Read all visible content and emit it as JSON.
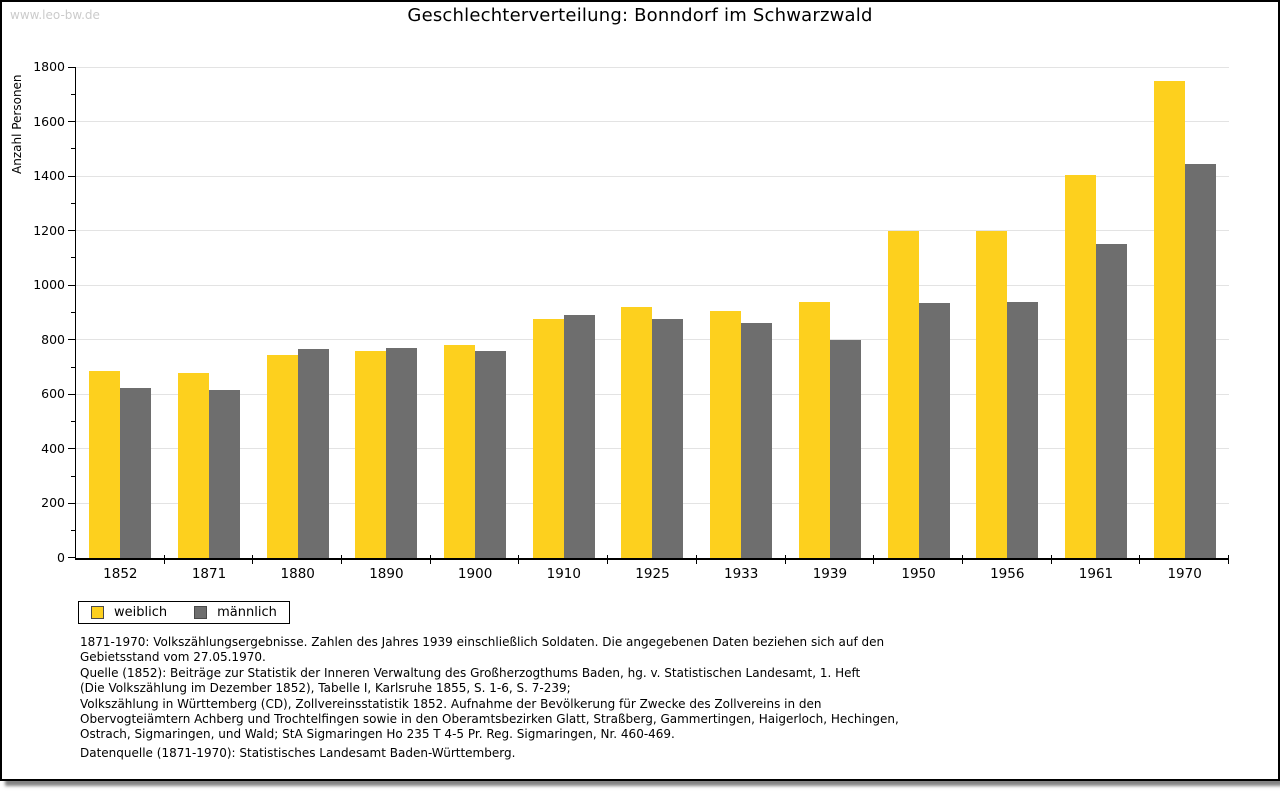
{
  "watermark": "www.leo-bw.de",
  "chart_data": {
    "type": "bar",
    "title": "Geschlechterverteilung: Bonndorf im Schwarzwald",
    "xlabel": "",
    "ylabel": "Anzahl Personen",
    "ylim": [
      0,
      1800
    ],
    "ytick_step": 200,
    "yminor_step": 100,
    "grid": "horizontal-major-gridlines",
    "legend_position": "bottom-left",
    "categories": [
      "1852",
      "1871",
      "1880",
      "1890",
      "1900",
      "1910",
      "1925",
      "1933",
      "1939",
      "1950",
      "1956",
      "1961",
      "1970"
    ],
    "series": [
      {
        "name": "weiblich",
        "color": "#FDD01E",
        "values": [
          685,
          680,
          745,
          760,
          780,
          875,
          920,
          905,
          940,
          1200,
          1200,
          1405,
          1750
        ]
      },
      {
        "name": "männlich",
        "color": "#6E6E6E",
        "values": [
          625,
          615,
          765,
          770,
          760,
          890,
          875,
          860,
          800,
          935,
          940,
          1150,
          1445
        ]
      }
    ]
  },
  "footnotes": {
    "lines": [
      "1871-1970: Volkszählungsergebnisse. Zahlen des Jahres 1939 einschließlich Soldaten. Die angegebenen Daten beziehen sich auf den",
      "Gebietsstand vom 27.05.1970.",
      "Quelle (1852): Beiträge zur Statistik der Inneren Verwaltung des Großherzogthums Baden, hg. v. Statistischen Landesamt, 1. Heft",
      "(Die Volkszählung im Dezember 1852), Tabelle I, Karlsruhe 1855, S. 1-6, S. 7-239;",
      "Volkszählung in Württemberg (CD), Zollvereinsstatistik 1852. Aufnahme der Bevölkerung für Zwecke des Zollvereins in den",
      "Obervogteiämtern Achberg und Trochtelfingen sowie in den Oberamtsbezirken Glatt, Straßberg, Gammertingen, Haigerloch, Hechingen,",
      "Ostrach, Sigmaringen, und Wald; StA Sigmaringen Ho 235 T 4-5 Pr. Reg. Sigmaringen, Nr. 460-469."
    ],
    "datasource": "Datenquelle (1871-1970): Statistisches Landesamt Baden-Württemberg."
  },
  "colors": {
    "bar_weiblich": "#FDD01E",
    "bar_männlich": "#6E6E6E",
    "gridline": "#E3E3E3",
    "watermark": "#CBCBCB",
    "axis": "#000000",
    "swatch_border": "#4A4A4A"
  }
}
